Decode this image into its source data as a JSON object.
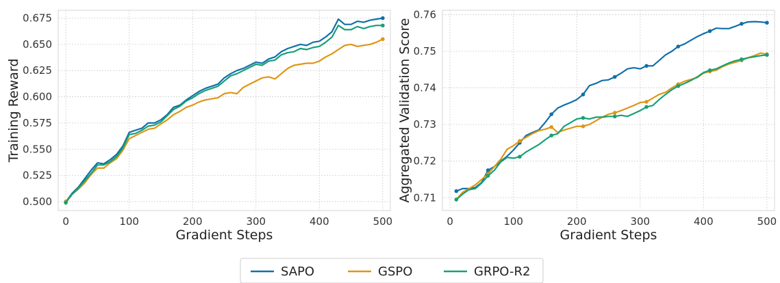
{
  "colors": {
    "SAPO": "#1170a8",
    "GSPO": "#de9614",
    "GRPO-R2": "#16a077"
  },
  "legend": {
    "placement": "bottom-center",
    "entries": [
      "SAPO",
      "GSPO",
      "GRPO-R2"
    ]
  },
  "chart_data": [
    {
      "type": "line",
      "xlabel": "Gradient Steps",
      "ylabel": "Training Reward",
      "xlim": [
        -12,
        512
      ],
      "ylim": [
        0.4915,
        0.6825
      ],
      "xticks": [
        0,
        100,
        200,
        300,
        400,
        500
      ],
      "yticks": [
        0.5,
        0.525,
        0.55,
        0.575,
        0.6,
        0.625,
        0.65,
        0.675
      ],
      "ytick_labels": [
        "0.500",
        "0.525",
        "0.550",
        "0.575",
        "0.600",
        "0.625",
        "0.650",
        "0.675"
      ],
      "grid": true,
      "marker_style": "endpoints",
      "series": [
        {
          "name": "SAPO",
          "x": [
            0,
            10,
            20,
            30,
            40,
            50,
            60,
            70,
            80,
            90,
            100,
            110,
            120,
            130,
            140,
            150,
            160,
            170,
            180,
            190,
            200,
            210,
            220,
            230,
            240,
            250,
            260,
            270,
            280,
            290,
            300,
            310,
            320,
            330,
            340,
            350,
            360,
            370,
            380,
            390,
            400,
            410,
            420,
            430,
            440,
            450,
            460,
            470,
            480,
            490,
            500
          ],
          "y": [
            0.5,
            0.508,
            0.514,
            0.522,
            0.53,
            0.537,
            0.536,
            0.54,
            0.545,
            0.553,
            0.566,
            0.568,
            0.57,
            0.575,
            0.575,
            0.578,
            0.583,
            0.59,
            0.592,
            0.597,
            0.601,
            0.605,
            0.608,
            0.61,
            0.612,
            0.618,
            0.622,
            0.625,
            0.627,
            0.63,
            0.633,
            0.632,
            0.636,
            0.638,
            0.643,
            0.646,
            0.648,
            0.65,
            0.649,
            0.652,
            0.653,
            0.657,
            0.662,
            0.674,
            0.669,
            0.669,
            0.672,
            0.671,
            0.673,
            0.674,
            0.675
          ]
        },
        {
          "name": "GSPO",
          "x": [
            0,
            10,
            20,
            30,
            40,
            50,
            60,
            70,
            80,
            90,
            100,
            110,
            120,
            130,
            140,
            150,
            160,
            170,
            180,
            190,
            200,
            210,
            220,
            230,
            240,
            250,
            260,
            270,
            280,
            290,
            300,
            310,
            320,
            330,
            340,
            350,
            360,
            370,
            380,
            390,
            400,
            410,
            420,
            430,
            440,
            450,
            460,
            470,
            480,
            490,
            500
          ],
          "y": [
            0.5,
            0.507,
            0.512,
            0.518,
            0.526,
            0.532,
            0.532,
            0.537,
            0.541,
            0.549,
            0.56,
            0.563,
            0.566,
            0.569,
            0.57,
            0.574,
            0.578,
            0.583,
            0.586,
            0.59,
            0.592,
            0.595,
            0.597,
            0.598,
            0.599,
            0.603,
            0.604,
            0.603,
            0.609,
            0.612,
            0.615,
            0.618,
            0.619,
            0.617,
            0.622,
            0.627,
            0.63,
            0.631,
            0.632,
            0.632,
            0.634,
            0.638,
            0.641,
            0.645,
            0.649,
            0.65,
            0.648,
            0.649,
            0.65,
            0.652,
            0.655
          ]
        },
        {
          "name": "GRPO-R2",
          "x": [
            0,
            10,
            20,
            30,
            40,
            50,
            60,
            70,
            80,
            90,
            100,
            110,
            120,
            130,
            140,
            150,
            160,
            170,
            180,
            190,
            200,
            210,
            220,
            230,
            240,
            250,
            260,
            270,
            280,
            290,
            300,
            310,
            320,
            330,
            340,
            350,
            360,
            370,
            380,
            390,
            400,
            410,
            420,
            430,
            440,
            450,
            460,
            470,
            480,
            490,
            500
          ],
          "y": [
            0.499,
            0.507,
            0.513,
            0.52,
            0.527,
            0.535,
            0.535,
            0.538,
            0.543,
            0.551,
            0.564,
            0.565,
            0.568,
            0.572,
            0.573,
            0.576,
            0.582,
            0.588,
            0.591,
            0.596,
            0.599,
            0.603,
            0.606,
            0.608,
            0.61,
            0.615,
            0.62,
            0.622,
            0.625,
            0.628,
            0.631,
            0.63,
            0.634,
            0.635,
            0.64,
            0.642,
            0.643,
            0.646,
            0.645,
            0.647,
            0.648,
            0.652,
            0.657,
            0.668,
            0.664,
            0.664,
            0.667,
            0.665,
            0.667,
            0.668,
            0.668
          ]
        }
      ]
    },
    {
      "type": "line",
      "xlabel": "Gradient Steps",
      "ylabel": "Aggregated Validation Score",
      "xlim": [
        -12,
        512
      ],
      "ylim": [
        0.7065,
        0.7612
      ],
      "xticks": [
        0,
        100,
        200,
        300,
        400,
        500
      ],
      "yticks": [
        0.71,
        0.72,
        0.73,
        0.74,
        0.75,
        0.76
      ],
      "ytick_labels": [
        "0.71",
        "0.72",
        "0.73",
        "0.74",
        "0.75",
        "0.76"
      ],
      "grid": true,
      "marker_style": "every-5th-point",
      "series": [
        {
          "name": "SAPO",
          "x": [
            10,
            20,
            30,
            40,
            50,
            60,
            70,
            80,
            90,
            100,
            110,
            120,
            130,
            140,
            150,
            160,
            170,
            180,
            190,
            200,
            210,
            220,
            230,
            240,
            250,
            260,
            270,
            280,
            290,
            300,
            310,
            320,
            330,
            340,
            350,
            360,
            370,
            380,
            390,
            400,
            410,
            420,
            430,
            440,
            450,
            460,
            470,
            480,
            490,
            500
          ],
          "y": [
            0.7118,
            0.7125,
            0.7125,
            0.7128,
            0.7142,
            0.7175,
            0.7185,
            0.72,
            0.7213,
            0.723,
            0.725,
            0.727,
            0.7278,
            0.7285,
            0.7305,
            0.7328,
            0.7345,
            0.7353,
            0.736,
            0.7368,
            0.7382,
            0.7406,
            0.7412,
            0.742,
            0.7422,
            0.743,
            0.744,
            0.7452,
            0.7455,
            0.7452,
            0.746,
            0.746,
            0.7475,
            0.749,
            0.75,
            0.7513,
            0.752,
            0.753,
            0.754,
            0.7548,
            0.7555,
            0.7563,
            0.7562,
            0.7562,
            0.7568,
            0.7575,
            0.758,
            0.7581,
            0.758,
            0.7578
          ]
        },
        {
          "name": "GSPO",
          "x": [
            10,
            20,
            30,
            40,
            50,
            60,
            70,
            80,
            90,
            100,
            110,
            120,
            130,
            140,
            150,
            160,
            170,
            180,
            190,
            200,
            210,
            220,
            230,
            240,
            250,
            260,
            270,
            280,
            290,
            300,
            310,
            320,
            330,
            340,
            350,
            360,
            370,
            380,
            390,
            400,
            410,
            420,
            430,
            440,
            450,
            460,
            470,
            480,
            490,
            500
          ],
          "y": [
            0.7095,
            0.7115,
            0.7125,
            0.7135,
            0.715,
            0.7165,
            0.7185,
            0.7205,
            0.7232,
            0.7242,
            0.7255,
            0.7265,
            0.7275,
            0.7283,
            0.7287,
            0.7293,
            0.7278,
            0.7285,
            0.729,
            0.7295,
            0.7295,
            0.73,
            0.731,
            0.732,
            0.7328,
            0.7332,
            0.7338,
            0.7345,
            0.7352,
            0.736,
            0.7362,
            0.7372,
            0.7382,
            0.7388,
            0.74,
            0.741,
            0.7418,
            0.7423,
            0.7428,
            0.744,
            0.7445,
            0.7448,
            0.7458,
            0.7465,
            0.747,
            0.7475,
            0.7482,
            0.7488,
            0.7495,
            0.7492
          ]
        },
        {
          "name": "GRPO-R2",
          "x": [
            10,
            20,
            30,
            40,
            50,
            60,
            70,
            80,
            90,
            100,
            110,
            120,
            130,
            140,
            150,
            160,
            170,
            180,
            190,
            200,
            210,
            220,
            230,
            240,
            250,
            260,
            270,
            280,
            290,
            300,
            310,
            320,
            330,
            340,
            350,
            360,
            370,
            380,
            390,
            400,
            410,
            420,
            430,
            440,
            450,
            460,
            470,
            480,
            490,
            500
          ],
          "y": [
            0.7095,
            0.711,
            0.7122,
            0.7125,
            0.714,
            0.716,
            0.7175,
            0.7198,
            0.721,
            0.7208,
            0.7212,
            0.7225,
            0.7235,
            0.7245,
            0.7258,
            0.727,
            0.7275,
            0.7295,
            0.7305,
            0.7315,
            0.7318,
            0.7315,
            0.732,
            0.732,
            0.7322,
            0.7322,
            0.7325,
            0.7322,
            0.733,
            0.7338,
            0.7348,
            0.7352,
            0.7368,
            0.7382,
            0.7395,
            0.7405,
            0.7412,
            0.742,
            0.743,
            0.7442,
            0.7448,
            0.7452,
            0.746,
            0.7468,
            0.7474,
            0.7478,
            0.7482,
            0.7485,
            0.7488,
            0.749
          ]
        }
      ]
    }
  ]
}
